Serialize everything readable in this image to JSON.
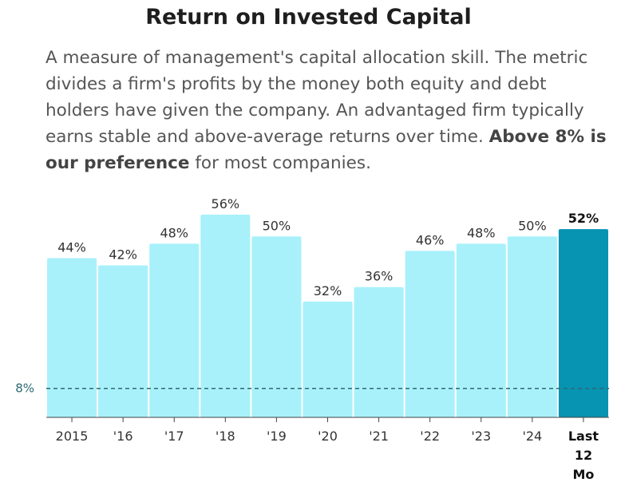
{
  "title": "Return on Invested Capital",
  "description": {
    "text": "A measure of management's capital allocation skill. The metric divides a firm's profits by the money both equity and debt holders have given the company. An advantaged firm typically earns stable and above-average returns over time.",
    "emphasis": "Above 8% is our preference",
    "tail": "for most companies."
  },
  "chart_data": {
    "type": "bar",
    "title": "Return on Invested Capital",
    "categories": [
      "2015",
      "'16",
      "'17",
      "'18",
      "'19",
      "'20",
      "'21",
      "'22",
      "'23",
      "'24",
      "Last 12 Mo"
    ],
    "values": [
      44,
      42,
      48,
      56,
      50,
      32,
      36,
      46,
      48,
      50,
      52
    ],
    "value_labels": [
      "44%",
      "42%",
      "48%",
      "56%",
      "50%",
      "32%",
      "36%",
      "46%",
      "48%",
      "50%",
      "52%"
    ],
    "ylim": [
      0,
      60
    ],
    "highlight_index": 10,
    "reference_line": {
      "value": 8,
      "label": "8%"
    },
    "colors": {
      "bar": "#a8f1fb",
      "highlight": "#0793b2",
      "reference": "#2f6a70"
    }
  }
}
